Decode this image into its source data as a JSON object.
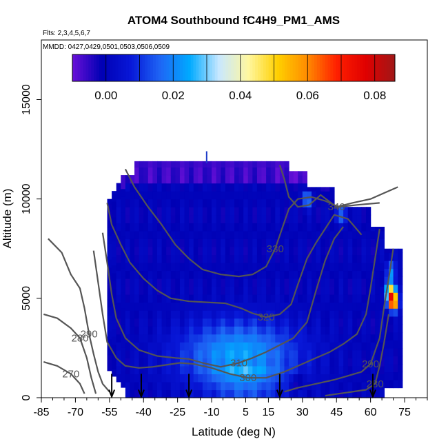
{
  "chart_data": {
    "type": "heatmap",
    "title": "ATOM4 Southbound fC4H9_PM1_AMS",
    "flights_text": "Flts: 2,3,4,5,6,7",
    "dates_text": "MMDD: 0427,0429,0501,0503,0506,0509",
    "xlabel": "Latitude (deg N)",
    "ylabel": "Altitude (m)",
    "xlim": [
      -85,
      85
    ],
    "ylim": [
      0,
      18000
    ],
    "x_ticks": [
      -85,
      -70,
      -55,
      -40,
      -25,
      -10,
      5,
      15,
      30,
      45,
      60,
      75
    ],
    "x_minor_ticks": [
      -80,
      -75,
      -65,
      -60,
      -50,
      -45,
      -35,
      -30,
      -20,
      -15,
      -5,
      0,
      10,
      20,
      25,
      35,
      40,
      50,
      55,
      65,
      70,
      80,
      85
    ],
    "y_ticks": [
      0,
      5000,
      10000,
      15000
    ],
    "colorbar": {
      "range": [
        -0.01,
        0.086
      ],
      "tick_values": [
        0.0,
        0.02,
        0.04,
        0.06,
        0.08
      ],
      "tick_labels": [
        "0.00",
        "0.02",
        "0.04",
        "0.06",
        "0.08"
      ],
      "divisions": [
        -0.01,
        0.0,
        0.01,
        0.02,
        0.03,
        0.04,
        0.05,
        0.06,
        0.07,
        0.08
      ],
      "colors": [
        "#6a10d8",
        "#0000b4",
        "#0818d8",
        "#1e66f5",
        "#00aaff",
        "#c8e8ff",
        "#fff7a0",
        "#ffd000",
        "#ff8c00",
        "#ff2000",
        "#e00000",
        "#a01818"
      ]
    },
    "contours": [
      {
        "label": "340",
        "points": [
          [
            20,
            11700
          ],
          [
            22,
            11000
          ],
          [
            24,
            10100
          ],
          [
            28,
            9600
          ],
          [
            33,
            9700
          ],
          [
            38,
            10200
          ],
          [
            45,
            9600
          ],
          [
            52,
            9800
          ],
          [
            60,
            10000
          ],
          [
            66,
            10300
          ],
          [
            72,
            10600
          ]
        ]
      },
      {
        "label": "330",
        "points": [
          [
            -48,
            11500
          ],
          [
            -44,
            10600
          ],
          [
            -38,
            9600
          ],
          [
            -32,
            8700
          ],
          [
            -26,
            7700
          ],
          [
            -20,
            7000
          ],
          [
            -14,
            6450
          ],
          [
            -6,
            6200
          ],
          [
            2,
            6100
          ],
          [
            8,
            6200
          ],
          [
            14,
            6600
          ],
          [
            18,
            7500
          ],
          [
            21,
            8500
          ],
          [
            24,
            9500
          ],
          [
            28,
            10000
          ],
          [
            34,
            10100
          ],
          [
            40,
            9900
          ],
          [
            46,
            9600
          ],
          [
            54,
            9700
          ],
          [
            64,
            9800
          ]
        ]
      },
      {
        "label": "320",
        "points": [
          [
            -56,
            9800
          ],
          [
            -54,
            8700
          ],
          [
            -50,
            7700
          ],
          [
            -46,
            6800
          ],
          [
            -40,
            6000
          ],
          [
            -34,
            5400
          ],
          [
            -28,
            5000
          ],
          [
            -20,
            4850
          ],
          [
            -12,
            4800
          ],
          [
            -4,
            4750
          ],
          [
            3,
            4500
          ],
          [
            8,
            4250
          ],
          [
            14,
            4050
          ],
          [
            20,
            4200
          ],
          [
            25,
            4700
          ],
          [
            28,
            5700
          ],
          [
            32,
            7000
          ],
          [
            36,
            7800
          ],
          [
            40,
            8500
          ],
          [
            44,
            9200
          ],
          [
            50,
            9000
          ],
          [
            56,
            8200
          ]
        ]
      },
      {
        "label": "310",
        "points": [
          [
            -58,
            8300
          ],
          [
            -56,
            6800
          ],
          [
            -54,
            5200
          ],
          [
            -52,
            4000
          ],
          [
            -48,
            3000
          ],
          [
            -42,
            2400
          ],
          [
            -34,
            2100
          ],
          [
            -26,
            2000
          ],
          [
            -20,
            1950
          ],
          [
            -14,
            1750
          ],
          [
            -6,
            1550
          ],
          [
            2,
            1750
          ],
          [
            8,
            2000
          ],
          [
            14,
            2300
          ],
          [
            20,
            2650
          ],
          [
            26,
            3000
          ],
          [
            32,
            3800
          ],
          [
            36,
            5400
          ],
          [
            40,
            6900
          ],
          [
            44,
            8000
          ],
          [
            48,
            8600
          ]
        ]
      },
      {
        "label": "300",
        "points": [
          [
            -62,
            7400
          ],
          [
            -60,
            5800
          ],
          [
            -58,
            4200
          ],
          [
            -56,
            2800
          ],
          [
            -52,
            2000
          ],
          [
            -48,
            1600
          ],
          [
            -42,
            1500
          ],
          [
            -36,
            1550
          ],
          [
            -30,
            1650
          ],
          [
            -24,
            1750
          ],
          [
            -18,
            1700
          ],
          [
            -10,
            1500
          ],
          [
            -2,
            1200
          ],
          [
            6,
            1000
          ],
          [
            14,
            1000
          ],
          [
            22,
            1300
          ],
          [
            30,
            1700
          ],
          [
            36,
            2000
          ],
          [
            42,
            2300
          ],
          [
            48,
            2700
          ],
          [
            54,
            3200
          ],
          [
            58,
            4200
          ],
          [
            60,
            5500
          ],
          [
            62,
            7000
          ],
          [
            64,
            8500
          ]
        ]
      },
      {
        "label": "290",
        "points": [
          [
            -82,
            8000
          ],
          [
            -76,
            7300
          ],
          [
            -72,
            6200
          ],
          [
            -68,
            5500
          ],
          [
            -66,
            4500
          ],
          [
            -64,
            3200
          ],
          [
            -62,
            2200
          ],
          [
            -60,
            1300
          ],
          [
            -58,
            700
          ],
          [
            -55,
            300
          ]
        ]
      },
      {
        "label": "290",
        "points": [
          [
            22,
            300
          ],
          [
            28,
            500
          ],
          [
            36,
            700
          ],
          [
            44,
            900
          ],
          [
            50,
            1100
          ],
          [
            56,
            1300
          ],
          [
            60,
            1700
          ],
          [
            64,
            3000
          ],
          [
            66,
            4600
          ],
          [
            68,
            6000
          ],
          [
            70,
            7500
          ]
        ]
      },
      {
        "label": "280",
        "points": [
          [
            -84,
            4200
          ],
          [
            -78,
            4000
          ],
          [
            -72,
            3500
          ],
          [
            -68,
            3000
          ],
          [
            -65,
            2000
          ],
          [
            -63,
            1000
          ],
          [
            -61,
            200
          ]
        ]
      },
      {
        "label": "280",
        "points": [
          [
            40,
            100
          ],
          [
            46,
            200
          ],
          [
            52,
            300
          ],
          [
            58,
            400
          ],
          [
            62,
            700
          ],
          [
            64,
            1600
          ],
          [
            66,
            2800
          ],
          [
            68,
            4200
          ]
        ]
      },
      {
        "label": "270",
        "points": [
          [
            -84,
            1800
          ],
          [
            -78,
            1600
          ],
          [
            -72,
            1200
          ],
          [
            -68,
            700
          ],
          [
            -66,
            200
          ]
        ]
      }
    ],
    "arrows_lat": [
      -54,
      -41,
      -20,
      20,
      61
    ]
  }
}
